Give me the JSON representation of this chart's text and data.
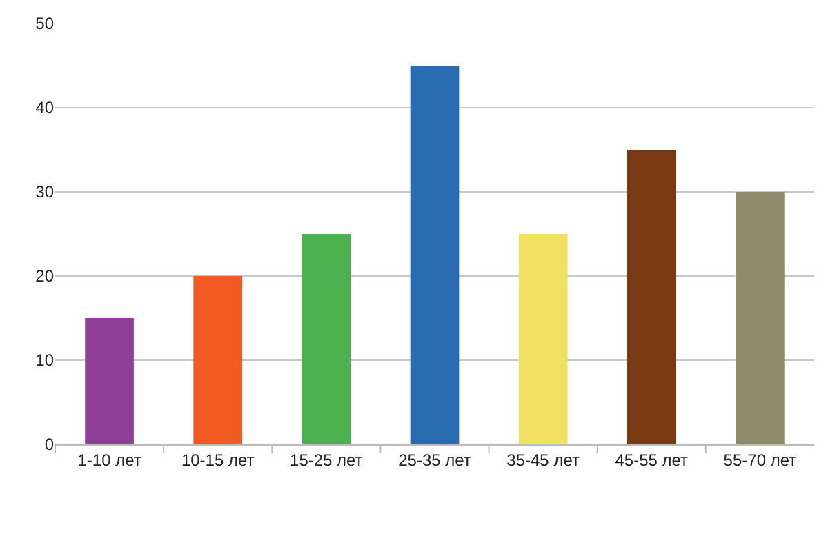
{
  "chart_data": {
    "type": "bar",
    "categories": [
      "1-10 лет",
      "10-15 лет",
      "15-25 лет",
      "25-35 лет",
      "35-45 лет",
      "45-55 лет",
      "55-70 лет"
    ],
    "values": [
      15,
      20,
      25,
      45,
      25,
      35,
      30
    ],
    "colors": [
      "#8f3f97",
      "#f15a22",
      "#4cb04f",
      "#2a6cb0",
      "#f2e062",
      "#7a3a11",
      "#8f8a6a"
    ],
    "ylim": [
      0,
      50
    ],
    "yticks": [
      0,
      10,
      20,
      30,
      40,
      50
    ],
    "grid": "y",
    "legend": false
  }
}
